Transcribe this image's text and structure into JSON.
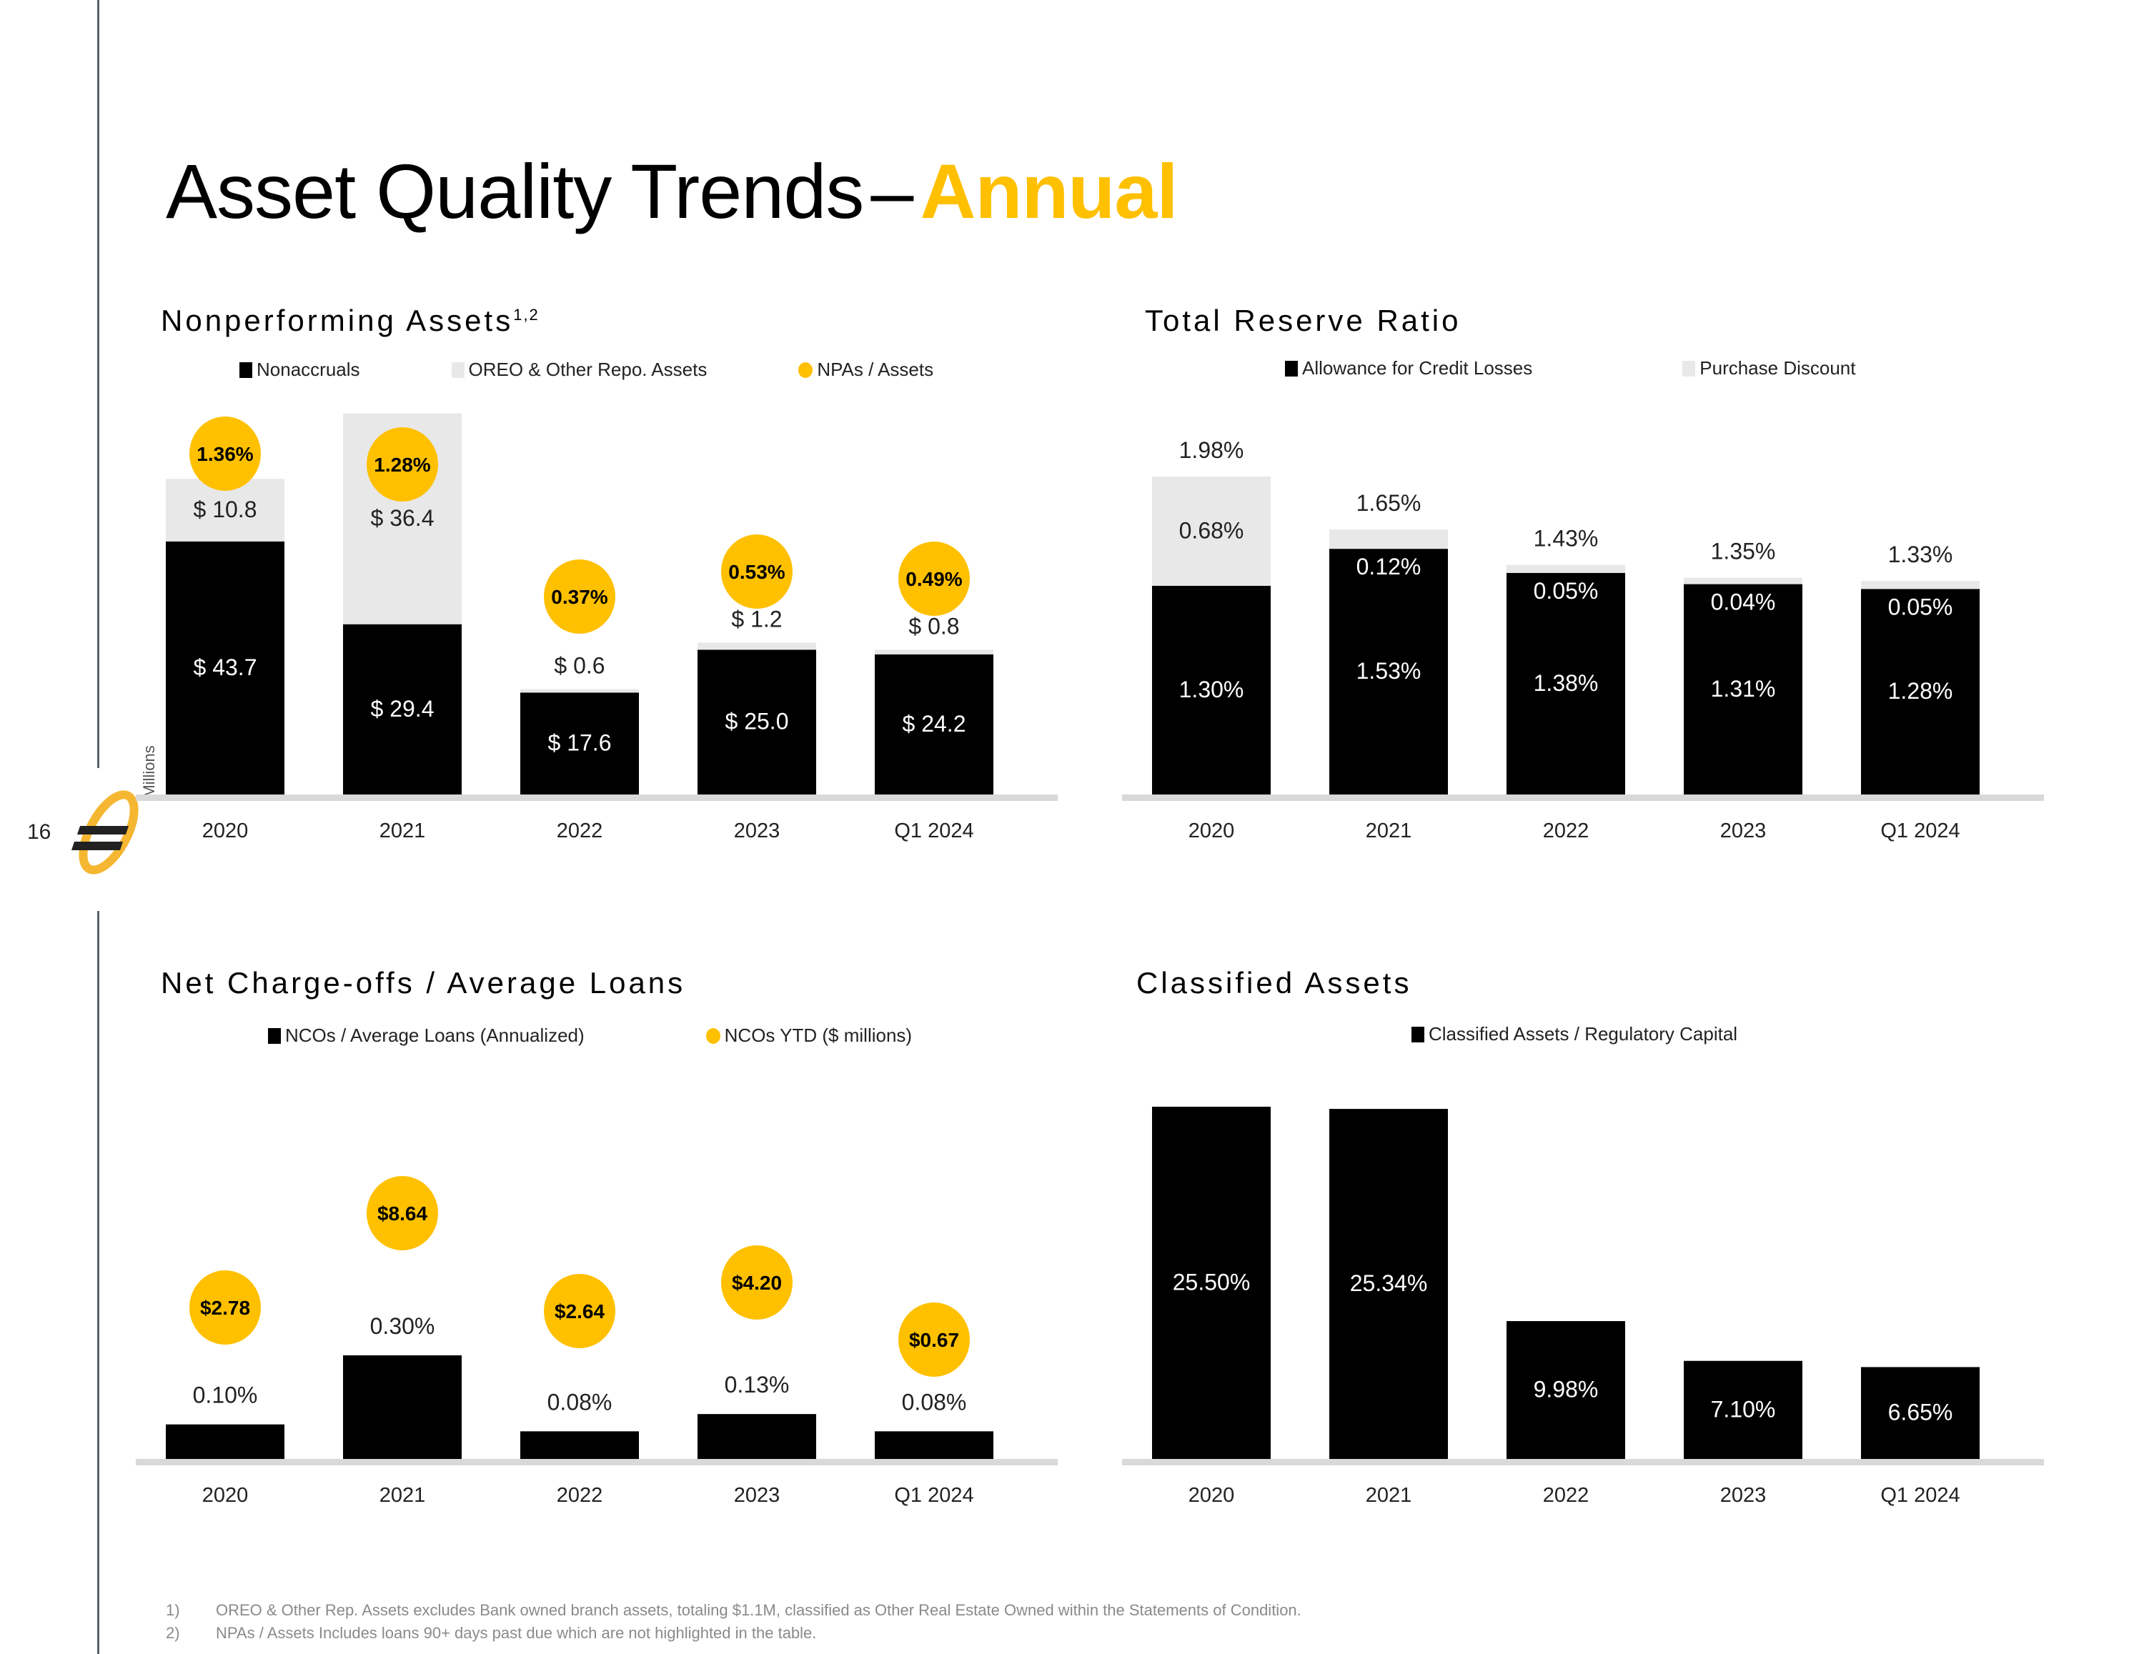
{
  "page": {
    "title_main": "Asset Quality Trends",
    "title_dash": "–",
    "title_accent": "Annual",
    "page_number": "16",
    "logo_icon": "company-logo-icon"
  },
  "colors": {
    "black": "#000000",
    "light_gray": "#E8E8E8",
    "accent_yellow": "#FFC000",
    "axis_gray": "#D9D9D9"
  },
  "footnotes": [
    {
      "num": "1)",
      "text": "OREO & Other Rep. Assets excludes Bank owned branch assets, totaling $1.1M, classified as Other Real Estate Owned within the Statements of Condition."
    },
    {
      "num": "2)",
      "text": "NPAs / Assets Includes loans 90+ days past due which are not highlighted in the table."
    }
  ],
  "chart_data": [
    {
      "id": "npa",
      "type": "bar",
      "stacked": true,
      "title": "Nonperforming Assets",
      "title_superscript": "1,2",
      "ylabel": "Millions",
      "categories": [
        "2020",
        "2021",
        "2022",
        "2023",
        "Q1 2024"
      ],
      "series": [
        {
          "name": "Nonaccruals",
          "values": [
            43.7,
            29.4,
            17.6,
            25.0,
            24.2
          ],
          "labels": [
            "$ 43.7",
            "$ 29.4",
            "$ 17.6",
            "$ 25.0",
            "$ 24.2"
          ]
        },
        {
          "name": "OREO & Other Repo. Assets",
          "values": [
            10.8,
            36.4,
            0.6,
            1.2,
            0.8
          ],
          "labels": [
            "$ 10.8",
            "$ 36.4",
            "$ 0.6",
            "$ 1.2",
            "$ 0.8"
          ]
        }
      ],
      "bubbles": {
        "name": "NPAs / Assets",
        "labels": [
          "1.36%",
          "1.28%",
          "0.37%",
          "0.53%",
          "0.49%"
        ],
        "values": [
          1.36,
          1.28,
          0.37,
          0.53,
          0.49
        ]
      },
      "legend": [
        "Nonaccruals",
        "OREO & Other Repo. Assets",
        "NPAs / Assets"
      ],
      "ylim": [
        0,
        66
      ],
      "grid": false
    },
    {
      "id": "reserve",
      "type": "bar",
      "stacked": true,
      "title": "Total Reserve Ratio",
      "categories": [
        "2020",
        "2021",
        "2022",
        "2023",
        "Q1 2024"
      ],
      "series": [
        {
          "name": "Allowance for Credit Losses",
          "values": [
            1.3,
            1.53,
            1.38,
            1.31,
            1.28
          ],
          "labels": [
            "1.30%",
            "1.53%",
            "1.38%",
            "1.31%",
            "1.28%"
          ]
        },
        {
          "name": "Purchase Discount",
          "values": [
            0.68,
            0.12,
            0.05,
            0.04,
            0.05
          ],
          "labels": [
            "0.68%",
            "0.12%",
            "0.05%",
            "0.04%",
            "0.05%"
          ]
        }
      ],
      "totals": [
        "1.98%",
        "1.65%",
        "1.43%",
        "1.35%",
        "1.33%"
      ],
      "legend": [
        "Allowance for Credit Losses",
        "Purchase Discount"
      ],
      "ylim": [
        0,
        2.3
      ],
      "grid": false
    },
    {
      "id": "nco",
      "type": "bar",
      "title": "Net Charge-offs / Average Loans",
      "categories": [
        "2020",
        "2021",
        "2022",
        "2023",
        "Q1 2024"
      ],
      "series": [
        {
          "name": "NCOs / Average Loans (Annualized)",
          "values": [
            0.1,
            0.3,
            0.08,
            0.13,
            0.08
          ],
          "labels": [
            "0.10%",
            "0.30%",
            "0.08%",
            "0.13%",
            "0.08%"
          ]
        }
      ],
      "bubbles": {
        "name": "NCOs YTD ($ millions)",
        "labels": [
          "$2.78",
          "$8.64",
          "$2.64",
          "$4.20",
          "$0.67"
        ],
        "values": [
          2.78,
          8.64,
          2.64,
          4.2,
          0.67
        ]
      },
      "legend": [
        "NCOs / Average Loans (Annualized)",
        "NCOs YTD ($ millions)"
      ],
      "ylim": [
        0,
        1.0
      ],
      "grid": false
    },
    {
      "id": "classified",
      "type": "bar",
      "title": "Classified Assets",
      "categories": [
        "2020",
        "2021",
        "2022",
        "2023",
        "Q1 2024"
      ],
      "series": [
        {
          "name": "Classified Assets / Regulatory Capital",
          "values": [
            25.5,
            25.34,
            9.98,
            7.1,
            6.65
          ],
          "labels": [
            "25.50%",
            "25.34%",
            "9.98%",
            "7.10%",
            "6.65%"
          ]
        }
      ],
      "legend": [
        "Classified Assets / Regulatory Capital"
      ],
      "ylim": [
        0,
        25.5
      ],
      "grid": false
    }
  ]
}
